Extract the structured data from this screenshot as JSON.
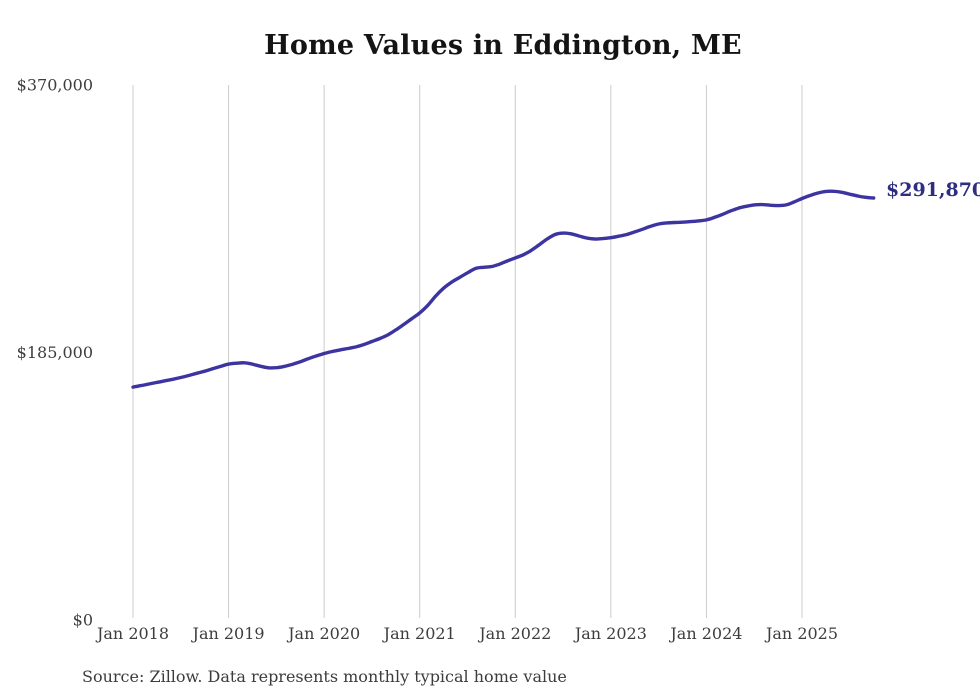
{
  "chart": {
    "title": "Home Values in Eddington, ME",
    "end_label": "$291,870",
    "source_note": "Source: Zillow. Data represents monthly typical home value"
  },
  "chart_data": {
    "type": "line",
    "title": "Home Values in Eddington, ME",
    "series_name": "Monthly typical home value",
    "x_start": "2018-01",
    "x_end": "2025-10",
    "x_cadence": "monthly",
    "x_tick_labels": [
      "Jan 2018",
      "Jan 2019",
      "Jan 2020",
      "Jan 2021",
      "Jan 2022",
      "Jan 2023",
      "Jan 2024",
      "Jan 2025"
    ],
    "y_ticks": [
      {
        "label": "$0",
        "value": 0
      },
      {
        "label": "$185,000",
        "value": 185000
      },
      {
        "label": "$370,000",
        "value": 370000
      }
    ],
    "ylim": [
      0,
      370000
    ],
    "grid": "vertical-only",
    "legend": "none",
    "final_value": 291870,
    "final_value_label": "$291,870",
    "line_color": "#3c34a0",
    "label_color": "#2d2d82",
    "grid_color": "#cccccc",
    "axis_text_color": "#3d3d3d",
    "values": [
      161100,
      162100,
      163200,
      164300,
      165400,
      166500,
      167700,
      169100,
      170600,
      172100,
      173700,
      175400,
      177000,
      177600,
      177900,
      176900,
      175500,
      174400,
      174500,
      175400,
      176800,
      178600,
      180700,
      182600,
      184300,
      185700,
      186800,
      187800,
      188900,
      190500,
      192600,
      194700,
      197200,
      200600,
      204400,
      208400,
      212400,
      217600,
      224000,
      229500,
      233600,
      236900,
      240100,
      243100,
      243900,
      244400,
      246100,
      248300,
      250400,
      252600,
      255600,
      259500,
      263500,
      266600,
      267600,
      267100,
      265600,
      264100,
      263500,
      263800,
      264400,
      265400,
      266600,
      268400,
      270300,
      272300,
      273900,
      274600,
      274900,
      275100,
      275500,
      276000,
      276700,
      278400,
      280500,
      282800,
      284800,
      286100,
      287100,
      287300,
      286900,
      286600,
      287100,
      289100,
      291500,
      293600,
      295300,
      296400,
      296500,
      295800,
      294500,
      293200,
      292300,
      291870
    ]
  }
}
